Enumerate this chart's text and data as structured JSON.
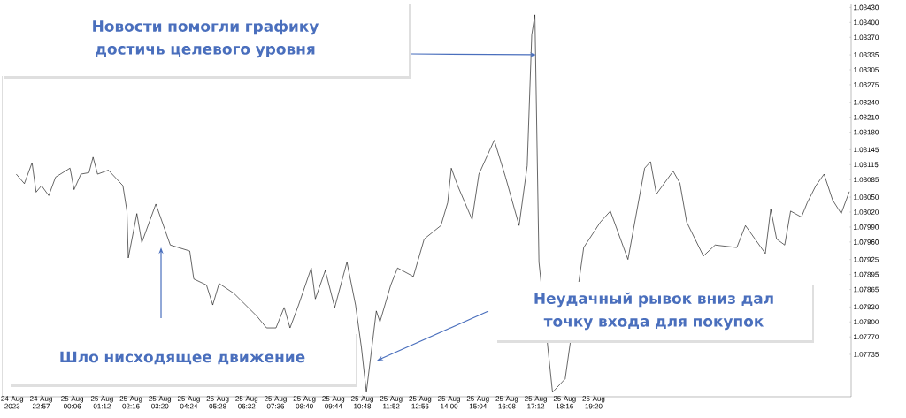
{
  "chart_data": {
    "type": "line",
    "color": "#000000",
    "marker": "none",
    "line_style": "solid",
    "grid": false,
    "x": [
      "2023-08-24T22:02",
      "2023-08-24T22:20",
      "2023-08-24T22:37",
      "2023-08-24T22:46",
      "2023-08-24T22:58",
      "2023-08-24T23:14",
      "2023-08-24T23:29",
      "2023-08-25T00:01",
      "2023-08-25T00:10",
      "2023-08-25T00:25",
      "2023-08-25T00:43",
      "2023-08-25T00:52",
      "2023-08-25T01:02",
      "2023-08-25T01:26",
      "2023-08-25T01:58",
      "2023-08-25T02:07",
      "2023-08-25T02:10",
      "2023-08-25T02:29",
      "2023-08-25T02:40",
      "2023-08-25T03:11",
      "2023-08-25T03:43",
      "2023-08-25T04:26",
      "2023-08-25T04:35",
      "2023-08-25T05:03",
      "2023-08-25T05:17",
      "2023-08-25T05:31",
      "2023-08-25T06:04",
      "2023-08-25T06:54",
      "2023-08-25T07:16",
      "2023-08-25T07:37",
      "2023-08-25T07:55",
      "2023-08-25T08:08",
      "2023-08-25T08:27",
      "2023-08-25T08:55",
      "2023-08-25T09:04",
      "2023-08-25T09:26",
      "2023-08-25T09:47",
      "2023-08-25T10:14",
      "2023-08-25T10:33",
      "2023-08-25T10:46",
      "2023-08-25T10:57",
      "2023-08-25T11:19",
      "2023-08-25T11:27",
      "2023-08-25T11:51",
      "2023-08-25T12:06",
      "2023-08-25T12:41",
      "2023-08-25T13:05",
      "2023-08-25T13:42",
      "2023-08-25T13:57",
      "2023-08-25T14:05",
      "2023-08-25T14:19",
      "2023-08-25T14:51",
      "2023-08-25T15:06",
      "2023-08-25T15:40",
      "2023-08-25T16:05",
      "2023-08-25T16:35",
      "2023-08-25T16:53",
      "2023-08-25T17:03",
      "2023-08-25T17:10",
      "2023-08-25T17:19",
      "2023-08-25T17:49",
      "2023-08-25T18:08",
      "2023-08-25T18:17",
      "2023-08-25T18:34",
      "2023-08-25T18:58",
      "2023-08-25T19:35",
      "2023-08-25T19:57",
      "2023-08-25T20:36",
      "2023-08-25T21:13",
      "2023-08-25T21:26",
      "2023-08-25T21:39",
      "2023-08-25T22:16",
      "2023-08-25T22:31",
      "2023-08-25T22:46",
      "2023-08-25T23:23",
      "2023-08-25T23:49",
      "2023-08-26T00:37",
      "2023-08-26T00:56",
      "2023-08-26T01:40",
      "2023-08-26T01:52",
      "2023-08-26T02:05",
      "2023-08-26T02:23",
      "2023-08-26T02:36",
      "2023-08-26T03:00",
      "2023-08-26T03:13",
      "2023-08-26T03:32",
      "2023-08-26T03:50",
      "2023-08-26T04:09",
      "2023-08-26T04:28",
      "2023-08-26T04:46"
    ],
    "values": [
      1.08096,
      1.08077,
      1.08119,
      1.0806,
      1.08073,
      1.08053,
      1.0809,
      1.08108,
      1.08065,
      1.08096,
      1.08099,
      1.0813,
      1.08096,
      1.08104,
      1.08073,
      1.08022,
      1.07928,
      1.08017,
      1.07959,
      1.08036,
      1.07954,
      1.07942,
      1.07886,
      1.07874,
      1.07834,
      1.07877,
      1.07857,
      1.07812,
      1.07788,
      1.07788,
      1.07829,
      1.07788,
      1.07834,
      1.07908,
      1.07846,
      1.07903,
      1.07829,
      1.0792,
      1.07834,
      1.07749,
      1.07659,
      1.07822,
      1.078,
      1.07874,
      1.07908,
      1.07891,
      1.07966,
      1.07993,
      1.08039,
      1.08108,
      1.08073,
      1.08005,
      1.08096,
      1.08164,
      1.0809,
      1.07993,
      1.08113,
      1.08375,
      1.08415,
      1.0792,
      1.07659,
      null,
      1.07686,
      null,
      1.07949,
      1.08,
      1.08022,
      1.07925,
      1.08108,
      1.08121,
      1.08056,
      1.08102,
      1.08078,
      1.08,
      1.07932,
      1.07954,
      1.07949,
      1.07993,
      1.07937,
      1.08026,
      1.07966,
      1.07954,
      1.08022,
      1.0801,
      1.08039,
      1.08073,
      1.08096,
      1.08044,
      1.08017,
      1.08061
    ],
    "xlim": [
      "2023-08-24T21:30",
      "2023-08-26T04:50"
    ],
    "ylim": [
      1.0765,
      1.08436
    ],
    "xticks": [
      {
        "value": "2023-08-24T21:53",
        "label": "24 Aug 2023"
      },
      {
        "value": "2023-08-24T22:57",
        "label": "24 Aug 22:57"
      },
      {
        "value": "2023-08-25T00:06",
        "label": "25 Aug 00:06"
      },
      {
        "value": "2023-08-25T01:12",
        "label": "25 Aug 01:12"
      },
      {
        "value": "2023-08-25T02:16",
        "label": "25 Aug 02:16"
      },
      {
        "value": "2023-08-25T03:20",
        "label": "25 Aug 03:20"
      },
      {
        "value": "2023-08-25T04:24",
        "label": "25 Aug 04:24"
      },
      {
        "value": "2023-08-25T05:28",
        "label": "25 Aug 05:28"
      },
      {
        "value": "2023-08-25T06:32",
        "label": "25 Aug 06:32"
      },
      {
        "value": "2023-08-25T07:36",
        "label": "25 Aug 07:36"
      },
      {
        "value": "2023-08-25T08:40",
        "label": "25 Aug 08:40"
      },
      {
        "value": "2023-08-25T09:44",
        "label": "25 Aug 09:44"
      },
      {
        "value": "2023-08-25T10:48",
        "label": "25 Aug 10:48"
      },
      {
        "value": "2023-08-25T11:52",
        "label": "25 Aug 11:52"
      },
      {
        "value": "2023-08-25T12:56",
        "label": "25 Aug 12:56"
      },
      {
        "value": "2023-08-25T14:00",
        "label": "25 Aug 14:00"
      },
      {
        "value": "2023-08-25T15:04",
        "label": "25 Aug 15:04"
      },
      {
        "value": "2023-08-25T16:08",
        "label": "25 Aug 16:08"
      },
      {
        "value": "2023-08-25T17:12",
        "label": "25 Aug 17:12"
      },
      {
        "value": "2023-08-25T18:16",
        "label": "25 Aug 18:16"
      },
      {
        "value": "2023-08-25T19:20",
        "label": "25 Aug 19:20"
      }
    ],
    "yticks": [
      {
        "value": 1.0843,
        "label": "1.08430"
      },
      {
        "value": 1.084,
        "label": "1.08400"
      },
      {
        "value": 1.0837,
        "label": "1.08370"
      },
      1.08335,
      1.08305,
      1.08275,
      {
        "value": 1.0824,
        "label": "1.08240"
      },
      {
        "value": 1.0821,
        "label": "1.08210"
      },
      {
        "value": 1.0818,
        "label": "1.08180"
      },
      1.08145,
      1.08115,
      1.08085,
      {
        "value": 1.0805,
        "label": "1.08050"
      },
      {
        "value": 1.0802,
        "label": "1.08020"
      },
      {
        "value": 1.0799,
        "label": "1.07990"
      },
      {
        "value": 1.0796,
        "label": "1.07960"
      },
      1.07925,
      1.07895,
      1.07865,
      {
        "value": 1.0783,
        "label": "1.07830"
      },
      {
        "value": 1.078,
        "label": "1.07800"
      },
      {
        "value": 1.0777,
        "label": "1.07770"
      },
      1.07735
    ],
    "annotations": [
      "Новости помогли графику достичь целевого уровня",
      "Неудачный рывок вниз дал точку входа для покупок",
      "Шло нисходящее движение"
    ]
  }
}
